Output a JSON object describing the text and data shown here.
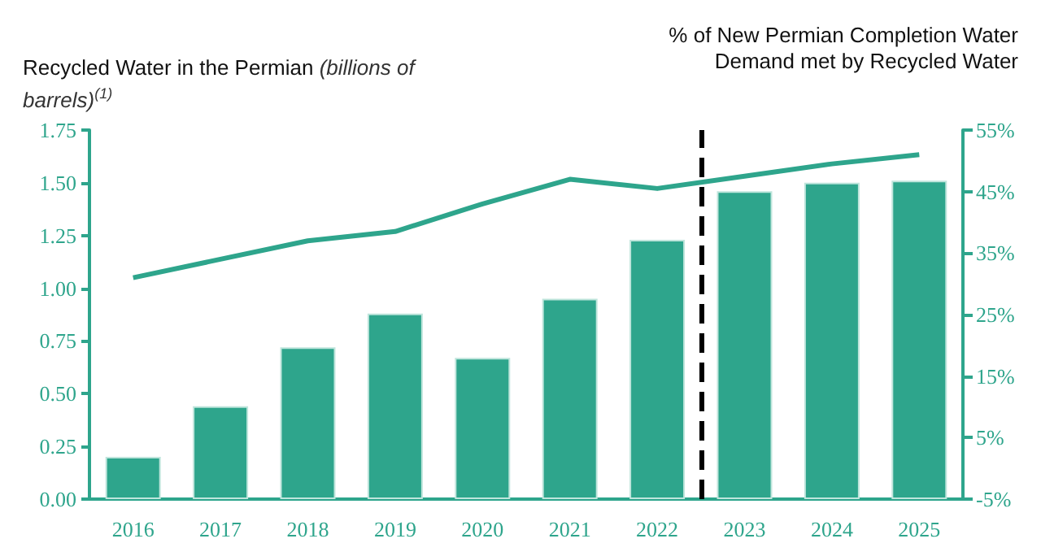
{
  "chart_data": {
    "type": "bar",
    "ylabel": "Recycled Water in the Permian (billions of barrels)$^{(1)}$",
    "y2label": "% of New Permian Completion Water Demand met by Recycled Water",
    "x": [
      2016,
      2017,
      2018,
      2019,
      2020,
      2021,
      2022,
      2023,
      2024,
      2025
    ],
    "xlim": [
      2015.5,
      2025.5
    ],
    "xticks": [
      2016,
      2017,
      2018,
      2019,
      2020,
      2021,
      2022,
      2023,
      2024,
      2025
    ],
    "series": [
      {
        "color": "#2ea58c",
        "values": [
          0.2,
          0.44,
          0.72,
          0.88,
          0.67,
          0.95,
          1.23,
          1.46,
          1.5,
          1.51
        ]
      },
      {
        "type": "line",
        "axis": "y2",
        "color": "#2ea58c",
        "values": [
          31,
          34,
          37,
          38.5,
          43,
          47,
          45.5,
          47.5,
          49.5,
          51
        ]
      }
    ],
    "ylim": [
      0,
      1.75
    ],
    "yticks": [
      {
        "value": 0,
        "label": "0.00"
      },
      {
        "value": 0.25,
        "label": "0.25"
      },
      {
        "value": 0.5,
        "label": "0.50"
      },
      {
        "value": 0.75,
        "label": "0.75"
      },
      {
        "value": 1,
        "label": "1.00"
      },
      {
        "value": 1.25,
        "label": "1.25"
      },
      {
        "value": 1.5,
        "label": "1.50"
      },
      {
        "value": 1.75,
        "label": "1.75"
      }
    ],
    "y2lim": [
      -5,
      55
    ],
    "y2ticks": [
      {
        "value": -5,
        "label": "-5%"
      },
      {
        "value": 5,
        "label": "5%"
      },
      {
        "value": 15,
        "label": "15%"
      },
      {
        "value": 25,
        "label": "25%"
      },
      {
        "value": 35,
        "label": "35%"
      },
      {
        "value": 45,
        "label": "45%"
      },
      {
        "value": 55,
        "label": "55%"
      }
    ],
    "ref_lines": [
      {
        "axis": "x",
        "value": 2022.5,
        "color": "#000000",
        "line_style": "dashed"
      }
    ],
    "grid": false,
    "marker": "none"
  }
}
